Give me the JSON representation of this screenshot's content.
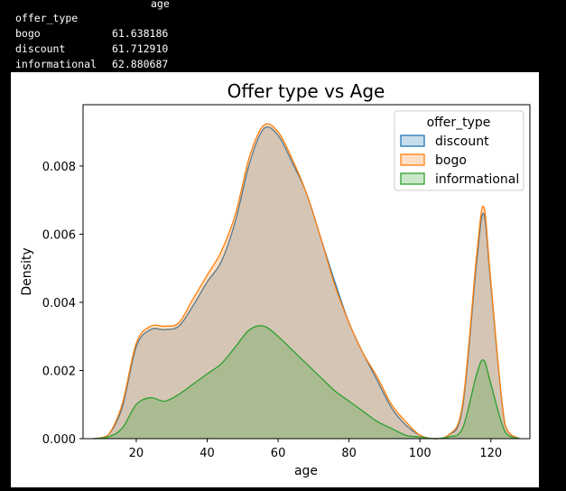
{
  "table": {
    "column_header": "age",
    "index_name": "offer_type",
    "rows": [
      {
        "label": "bogo",
        "value": "61.638186"
      },
      {
        "label": "discount",
        "value": "61.712910"
      },
      {
        "label": "informational",
        "value": "62.880687"
      }
    ]
  },
  "chart_data": {
    "type": "area",
    "title": "Offer type vs Age",
    "xlabel": "age",
    "ylabel": "Density",
    "xlim": [
      5,
      131
    ],
    "ylim": [
      0,
      0.0098
    ],
    "xticks": [
      "20",
      "40",
      "60",
      "80",
      "100",
      "120"
    ],
    "yticks": [
      "0.000",
      "0.002",
      "0.004",
      "0.006",
      "0.008"
    ],
    "grid": false,
    "legend": {
      "title": "offer_type",
      "position": "top-right"
    },
    "x": [
      8,
      12,
      16,
      20,
      24,
      28,
      32,
      36,
      40,
      44,
      48,
      52,
      56,
      60,
      64,
      68,
      72,
      76,
      80,
      84,
      88,
      92,
      96,
      100,
      104,
      108,
      112,
      116,
      118,
      120,
      124,
      128
    ],
    "series": [
      {
        "name": "discount",
        "color": "#1f77b4",
        "values": [
          0,
          0.0001,
          0.0009,
          0.0027,
          0.0032,
          0.0032,
          0.0033,
          0.0039,
          0.0046,
          0.0052,
          0.0064,
          0.0081,
          0.0091,
          0.0089,
          0.0081,
          0.0072,
          0.0059,
          0.0046,
          0.0034,
          0.0025,
          0.0017,
          0.0009,
          0.0004,
          0.0001,
          0,
          0.0001,
          0.0009,
          0.0052,
          0.0066,
          0.0045,
          0.0004,
          0
        ]
      },
      {
        "name": "bogo",
        "color": "#ff7f0e",
        "values": [
          0,
          0.0001,
          0.001,
          0.0028,
          0.0033,
          0.0033,
          0.0034,
          0.0041,
          0.0048,
          0.0055,
          0.0066,
          0.0083,
          0.0092,
          0.009,
          0.0082,
          0.0072,
          0.0059,
          0.0045,
          0.0034,
          0.0025,
          0.0018,
          0.001,
          0.0005,
          0.0001,
          0,
          0.0001,
          0.001,
          0.0054,
          0.0068,
          0.0046,
          0.0004,
          0
        ]
      },
      {
        "name": "informational",
        "color": "#2ca02c",
        "values": [
          0,
          5e-05,
          0.0003,
          0.001,
          0.0012,
          0.0011,
          0.0013,
          0.0016,
          0.0019,
          0.0022,
          0.0027,
          0.0032,
          0.0033,
          0.003,
          0.0026,
          0.0022,
          0.0018,
          0.0014,
          0.0011,
          0.0008,
          0.0005,
          0.0003,
          0.0001,
          5e-05,
          0,
          5e-05,
          0.0003,
          0.0019,
          0.0023,
          0.0016,
          0.0002,
          0
        ]
      }
    ]
  }
}
